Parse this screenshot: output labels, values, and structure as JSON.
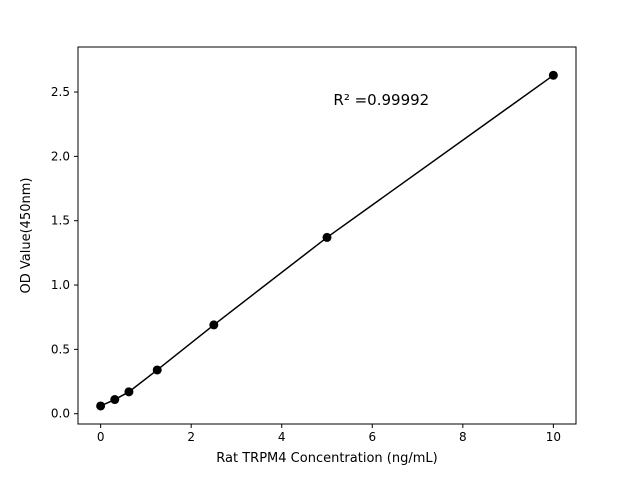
{
  "figure": {
    "background": "#ffffff",
    "foreground": "#000000"
  },
  "chart_data": {
    "type": "scatter",
    "title": "",
    "xlabel": "Rat TRPM4 Concentration (ng/mL)",
    "ylabel": "OD Value(450nm)",
    "x": [
      0,
      0.3125,
      0.625,
      1.25,
      2.5,
      5,
      10
    ],
    "y": [
      0.06,
      0.11,
      0.17,
      0.34,
      0.69,
      1.37,
      2.63
    ],
    "line": true,
    "line_color": "#000000",
    "marker_color": "#000000",
    "marker": "circle",
    "grid": false,
    "legend_position": "none",
    "xlim": [
      -0.5,
      10.5
    ],
    "ylim": [
      -0.08,
      2.85
    ],
    "xticks": [
      0,
      2,
      4,
      6,
      8,
      10
    ],
    "xticklabels": [
      "0",
      "2",
      "4",
      "6",
      "8",
      "10"
    ],
    "yticks": [
      0.0,
      0.5,
      1.0,
      1.5,
      2.0,
      2.5
    ],
    "yticklabels": [
      "0.0",
      "0.5",
      "1.0",
      "1.5",
      "2.0",
      "2.5"
    ],
    "annotation": {
      "text": "R² =0.99992",
      "x": 6.2,
      "y": 2.4
    }
  }
}
